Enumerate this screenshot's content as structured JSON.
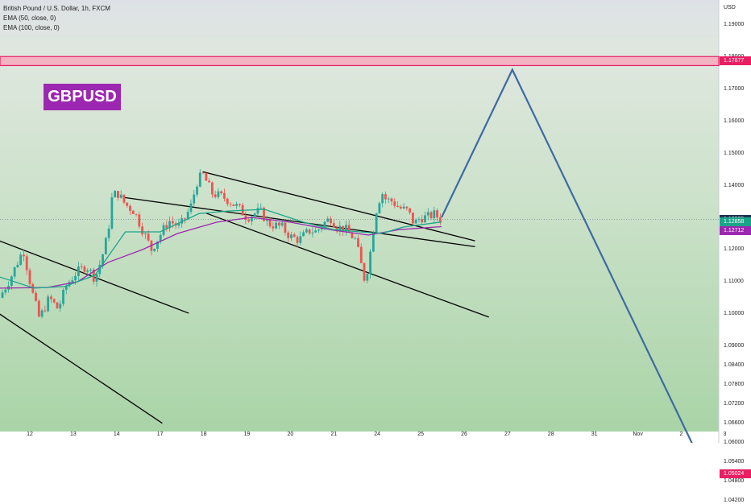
{
  "header": {
    "title": "British Pound / U.S. Dollar, 1h, FXCM",
    "indicators": [
      "EMA (50, close, 0)",
      "EMA (100, close, 0)"
    ]
  },
  "symbol_label": "GBPUSD",
  "colors": {
    "resistance": "#e91e63",
    "support": "#e91e63",
    "projection": "#3d6aa3",
    "ema50": "#1aa58a",
    "ema100": "#9c27b0",
    "bull": "#26a69a",
    "bear": "#ef5350"
  },
  "chart_data": {
    "type": "candlestick",
    "symbol": "British Pound / U.S. Dollar",
    "timeframe": "1h",
    "source": "FXCM",
    "currency": "USD",
    "ylim": [
      1.0406,
      1.2006
    ],
    "y_ticks": [
      "1.19000",
      "1.18000",
      "1.17000",
      "1.16000",
      "1.15000",
      "1.14000",
      "1.13000",
      "1.12000",
      "1.11000",
      "1.10000",
      "1.09000",
      "1.08400",
      "1.07800",
      "1.07200",
      "1.06600",
      "1.06000",
      "1.05400",
      "1.04800",
      "1.04200"
    ],
    "x_ticks": [
      {
        "label": "12",
        "day": 0
      },
      {
        "label": "13",
        "day": 1
      },
      {
        "label": "14",
        "day": 2
      },
      {
        "label": "17",
        "day": 3
      },
      {
        "label": "18",
        "day": 4
      },
      {
        "label": "19",
        "day": 5
      },
      {
        "label": "20",
        "day": 6
      },
      {
        "label": "21",
        "day": 7
      },
      {
        "label": "24",
        "day": 8
      },
      {
        "label": "25",
        "day": 9
      },
      {
        "label": "26",
        "day": 10
      },
      {
        "label": "27",
        "day": 11
      },
      {
        "label": "28",
        "day": 12
      },
      {
        "label": "31",
        "day": 13
      },
      {
        "label": "Nov",
        "day": 14
      },
      {
        "label": "2",
        "day": 15
      },
      {
        "label": "3",
        "day": 16
      }
    ],
    "price_badges": [
      {
        "label": "USD",
        "kind": "unit"
      },
      {
        "label": "1.17877",
        "value": 1.17877,
        "kind": "resistance"
      },
      {
        "label": "1.12935",
        "value": 1.12935,
        "kind": "last"
      },
      {
        "label": "32:27",
        "kind": "countdown"
      },
      {
        "label": "1.12858",
        "value": 1.12858,
        "kind": "ema50"
      },
      {
        "label": "1.12712",
        "value": 1.12712,
        "kind": "ema100"
      },
      {
        "label": "1.05024",
        "value": 1.05024,
        "kind": "support"
      }
    ],
    "zones": [
      {
        "name": "resistance",
        "from": 1.1772,
        "to": 1.18
      },
      {
        "name": "support",
        "from": 1.0385,
        "to": 1.0502
      }
    ],
    "last_price": 1.12935,
    "trendlines": [
      {
        "from": [
          -0.7,
          1.1227
        ],
        "to": [
          3.66,
          1.1002
        ]
      },
      {
        "from": [
          -0.7,
          1.1
        ],
        "to": [
          3.05,
          1.066
        ]
      },
      {
        "from": [
          2.17,
          1.1362
        ],
        "to": [
          10.25,
          1.1209
        ]
      },
      {
        "from": [
          3.98,
          1.1442
        ],
        "to": [
          10.25,
          1.1227
        ]
      },
      {
        "from": [
          4.06,
          1.1313
        ],
        "to": [
          10.57,
          1.099
        ]
      }
    ],
    "projection": {
      "points": [
        [
          9.48,
          1.13
        ],
        [
          11.11,
          1.1759
        ],
        [
          15.5,
          1.0527
        ]
      ],
      "arrow_head": "down"
    },
    "candles": {
      "start_day": -0.7,
      "end_day": 9.48,
      "anchors": [
        [
          -0.7,
          1.105
        ],
        [
          -0.45,
          1.111
        ],
        [
          -0.15,
          1.12
        ],
        [
          0.05,
          1.107
        ],
        [
          0.22,
          1.0985
        ],
        [
          0.45,
          1.105
        ],
        [
          0.65,
          1.1015
        ],
        [
          0.85,
          1.109
        ],
        [
          1.05,
          1.1125
        ],
        [
          1.3,
          1.115
        ],
        [
          1.5,
          1.111
        ],
        [
          1.65,
          1.117
        ],
        [
          1.8,
          1.125
        ],
        [
          1.88,
          1.1355
        ],
        [
          2.0,
          1.138
        ],
        [
          2.2,
          1.134
        ],
        [
          2.4,
          1.132
        ],
        [
          2.6,
          1.126
        ],
        [
          2.8,
          1.12
        ],
        [
          3.0,
          1.1245
        ],
        [
          3.2,
          1.129
        ],
        [
          3.45,
          1.127
        ],
        [
          3.7,
          1.133
        ],
        [
          3.85,
          1.141
        ],
        [
          3.98,
          1.1435
        ],
        [
          4.2,
          1.1375
        ],
        [
          4.5,
          1.136
        ],
        [
          4.8,
          1.133
        ],
        [
          5.0,
          1.13
        ],
        [
          5.3,
          1.132
        ],
        [
          5.5,
          1.128
        ],
        [
          5.8,
          1.127
        ],
        [
          6.0,
          1.124
        ],
        [
          6.2,
          1.123
        ],
        [
          6.45,
          1.126
        ],
        [
          6.6,
          1.1255
        ],
        [
          6.75,
          1.128
        ],
        [
          6.95,
          1.13
        ],
        [
          7.05,
          1.127
        ],
        [
          7.25,
          1.1265
        ],
        [
          7.5,
          1.123
        ],
        [
          7.65,
          1.114
        ],
        [
          7.72,
          1.11
        ],
        [
          7.85,
          1.12
        ],
        [
          7.95,
          1.131
        ],
        [
          8.1,
          1.138
        ],
        [
          8.2,
          1.1355
        ],
        [
          8.35,
          1.135
        ],
        [
          8.5,
          1.133
        ],
        [
          8.7,
          1.132
        ],
        [
          8.85,
          1.128
        ],
        [
          9.0,
          1.13
        ],
        [
          9.15,
          1.13
        ],
        [
          9.3,
          1.131
        ],
        [
          9.48,
          1.1293
        ]
      ]
    },
    "ema50": [
      [
        -0.7,
        1.1115
      ],
      [
        0.1,
        1.108
      ],
      [
        0.8,
        1.1085
      ],
      [
        1.5,
        1.112
      ],
      [
        2.2,
        1.1255
      ],
      [
        3.0,
        1.1255
      ],
      [
        3.9,
        1.1312
      ],
      [
        4.6,
        1.132
      ],
      [
        5.4,
        1.1325
      ],
      [
        6.3,
        1.1285
      ],
      [
        7.0,
        1.1262
      ],
      [
        7.6,
        1.1255
      ],
      [
        8.1,
        1.125
      ],
      [
        8.6,
        1.127
      ],
      [
        9.48,
        1.12858
      ]
    ],
    "ema100": [
      [
        -0.7,
        1.108
      ],
      [
        0.4,
        1.1082
      ],
      [
        1.1,
        1.11
      ],
      [
        1.8,
        1.116
      ],
      [
        2.6,
        1.12
      ],
      [
        3.4,
        1.125
      ],
      [
        4.3,
        1.1285
      ],
      [
        5.1,
        1.13
      ],
      [
        6.0,
        1.1285
      ],
      [
        7.0,
        1.126
      ],
      [
        7.8,
        1.1245
      ],
      [
        8.5,
        1.1262
      ],
      [
        9.48,
        1.12712
      ]
    ]
  }
}
